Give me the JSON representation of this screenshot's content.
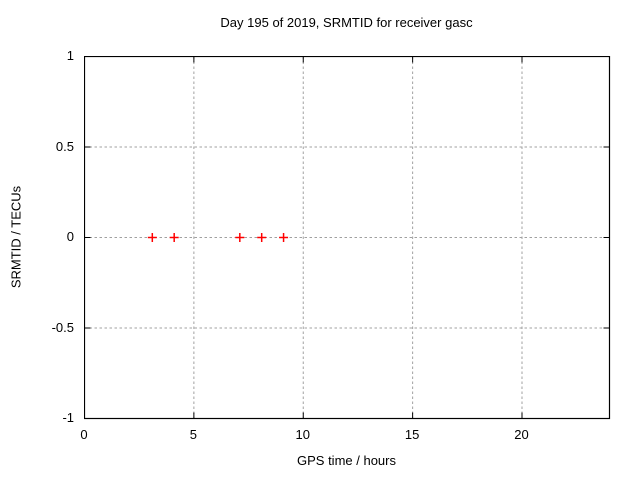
{
  "chart_data": {
    "type": "scatter",
    "title": "Day 195 of 2019, SRMTID for receiver gasc",
    "xlabel": "GPS time / hours",
    "ylabel": "SRMTID / TECUs",
    "xlim": [
      0,
      24
    ],
    "ylim": [
      -1,
      1
    ],
    "xticks": [
      0,
      5,
      10,
      15,
      20
    ],
    "yticks": [
      1,
      0.5,
      0,
      -0.5,
      -1
    ],
    "grid": true,
    "legend": "none",
    "series": [
      {
        "marker": "plus",
        "color": "#ff0000",
        "points": [
          {
            "x": 3.1,
            "y": 0
          },
          {
            "x": 4.1,
            "y": 0
          },
          {
            "x": 7.1,
            "y": 0
          },
          {
            "x": 8.1,
            "y": 0
          },
          {
            "x": 9.1,
            "y": 0
          }
        ]
      }
    ],
    "colors": {
      "background": "#ffffff",
      "text": "#000000",
      "border": "#000000",
      "grid": "#a0a0a0",
      "marker": "#ff0000"
    }
  }
}
